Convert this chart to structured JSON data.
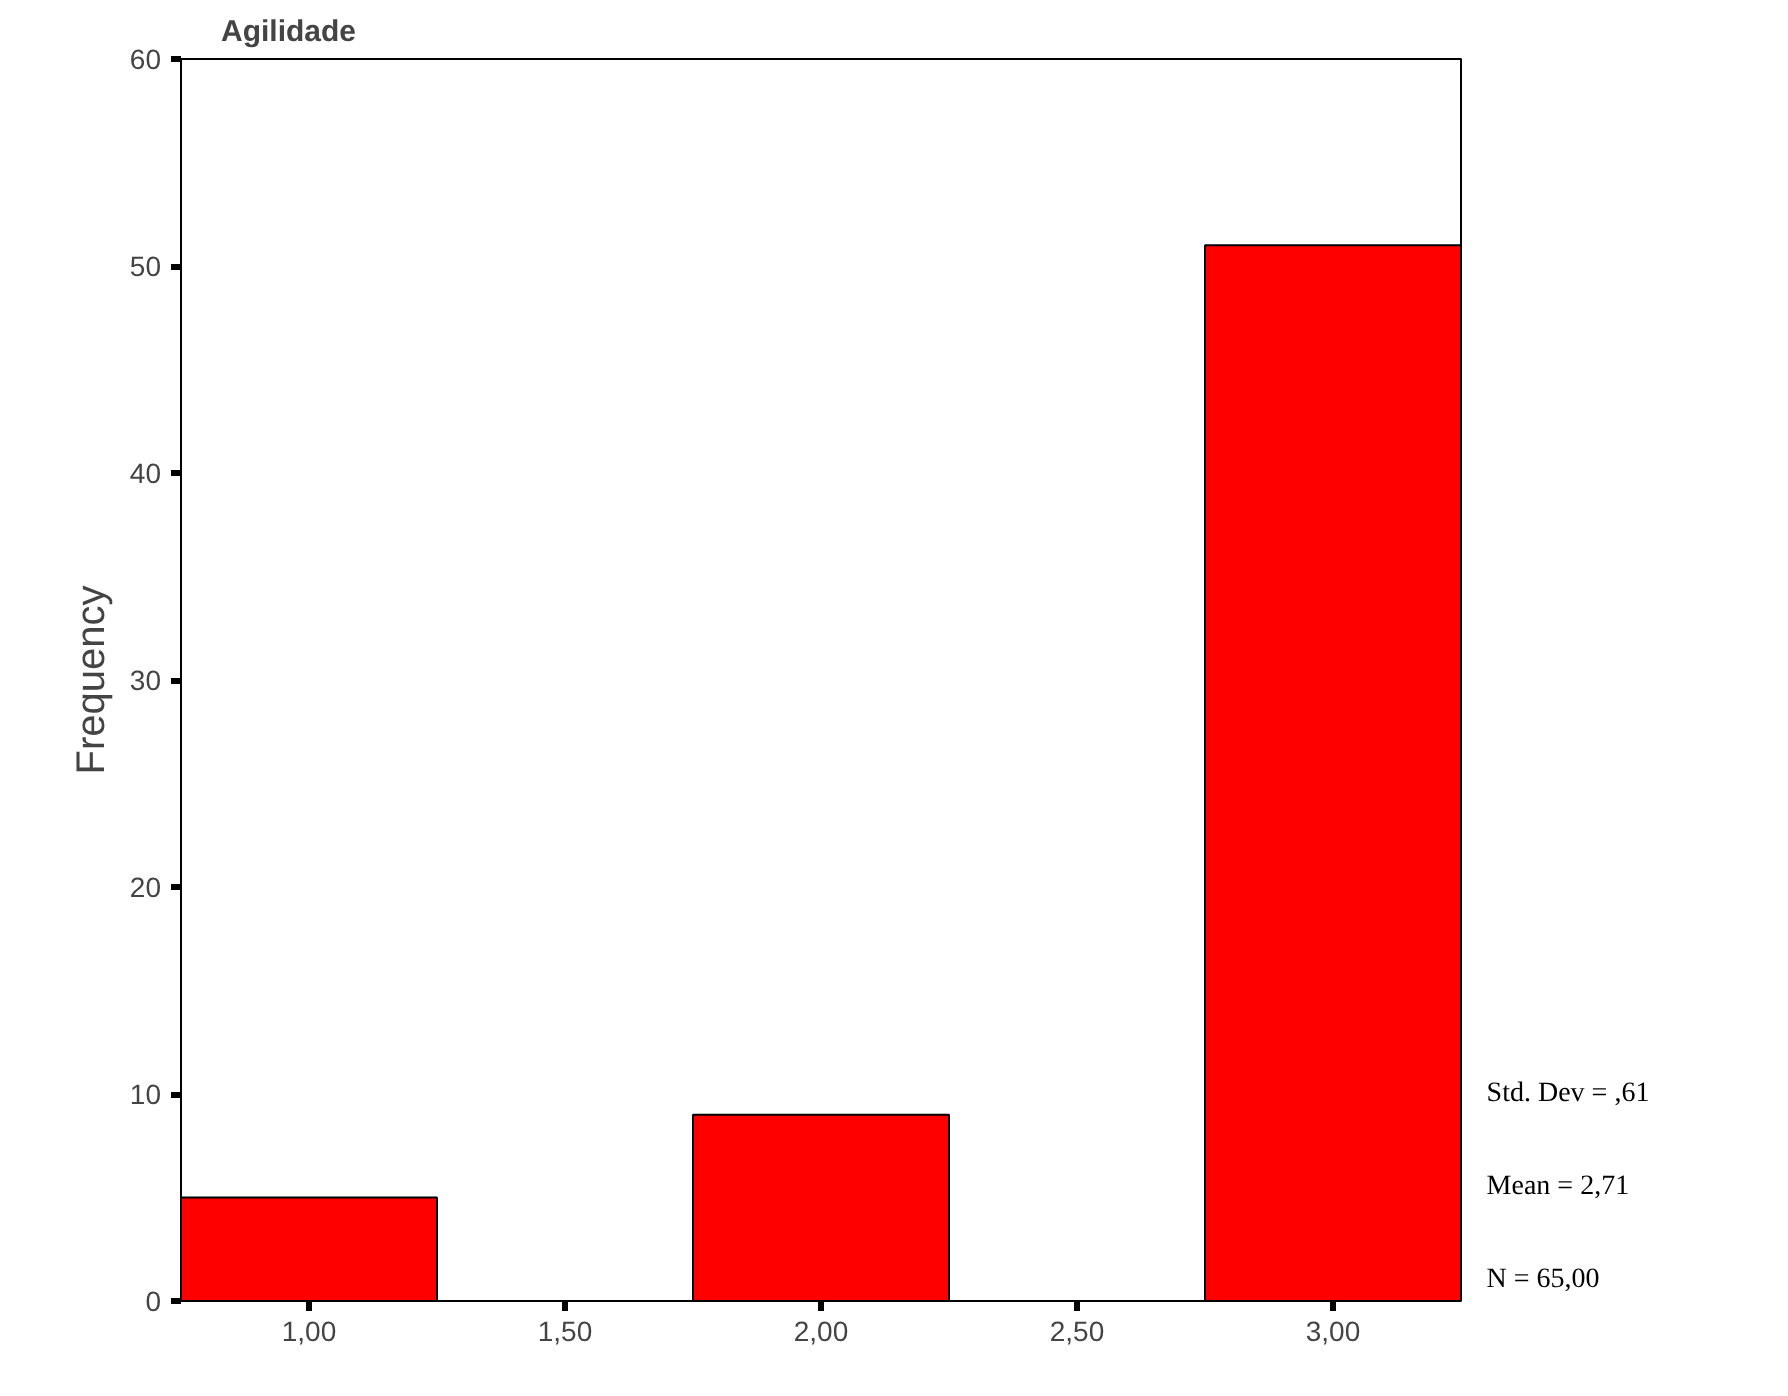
{
  "chart_data": {
    "type": "histogram",
    "title": "Agilidade",
    "ylabel": "Frequency",
    "bins": [
      0.75,
      1.25,
      1.75,
      2.25,
      2.75,
      3.25
    ],
    "values": [
      5,
      0,
      9,
      0,
      51
    ],
    "color": "#ff0000",
    "xlim": [
      0.75,
      3.25
    ],
    "ylim": [
      0,
      60
    ],
    "xticks": [
      {
        "value": 1,
        "label": "1,00"
      },
      {
        "value": 1.5,
        "label": "1,50"
      },
      {
        "value": 2,
        "label": "2,00"
      },
      {
        "value": 2.5,
        "label": "2,50"
      },
      {
        "value": 3,
        "label": "3,00"
      }
    ],
    "yticks": [
      0,
      10,
      20,
      30,
      40,
      50,
      60
    ],
    "grid": false,
    "annotations": [
      "Std. Dev = ,61",
      "Mean = 2,71",
      "N = 65,00"
    ]
  }
}
